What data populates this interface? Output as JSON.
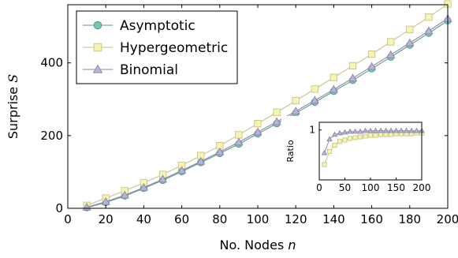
{
  "chart_data": {
    "type": "line",
    "xlabel": "No. Nodes",
    "xlabel_var": "n",
    "ylabel": "Surprise",
    "ylabel_var": "S",
    "xlim": [
      0,
      200
    ],
    "ylim": [
      0,
      560
    ],
    "xticks": [
      0,
      20,
      40,
      60,
      80,
      100,
      120,
      140,
      160,
      180,
      200
    ],
    "yticks": [
      0,
      200,
      400
    ],
    "grid": false,
    "legend": "top-left",
    "x": [
      10,
      20,
      30,
      40,
      50,
      60,
      70,
      80,
      90,
      100,
      110,
      120,
      130,
      140,
      150,
      160,
      170,
      180,
      190,
      200
    ],
    "series": [
      {
        "name": "Asymptotic",
        "marker": "circle",
        "line_color": "#5b9a8b",
        "fill": "#6fc6b4",
        "values": [
          2,
          16,
          34,
          55,
          77,
          101,
          126,
          151,
          177,
          205,
          233,
          262,
          292,
          322,
          352,
          384,
          416,
          449,
          482,
          516
        ]
      },
      {
        "name": "Hypergeometric",
        "marker": "square",
        "line_color": "#c8c48a",
        "fill": "#f7f4b0",
        "values": [
          8,
          28,
          48,
          70,
          93,
          118,
          145,
          172,
          202,
          233,
          264,
          296,
          328,
          360,
          392,
          424,
          458,
          492,
          526,
          562
        ]
      },
      {
        "name": "Binomial",
        "marker": "triangle",
        "line_color": "#8a86a8",
        "fill": "#b8b3d8",
        "values": [
          3,
          18,
          36,
          57,
          80,
          104,
          129,
          155,
          182,
          210,
          238,
          267,
          297,
          327,
          358,
          390,
          422,
          455,
          488,
          522
        ]
      }
    ],
    "inset": {
      "type": "line",
      "ylabel": "Ratio",
      "xlim": [
        0,
        200
      ],
      "ylim": [
        0.35,
        1.1
      ],
      "xticks": [
        0,
        50,
        100,
        150,
        200
      ],
      "yticks": [
        1
      ],
      "x": [
        10,
        20,
        30,
        40,
        50,
        60,
        70,
        80,
        90,
        100,
        110,
        120,
        130,
        140,
        150,
        160,
        170,
        180,
        190,
        200
      ],
      "series": [
        {
          "name": "Hypergeometric",
          "marker": "square",
          "values": [
            0.55,
            0.72,
            0.8,
            0.85,
            0.87,
            0.89,
            0.9,
            0.91,
            0.92,
            0.93,
            0.93,
            0.94,
            0.94,
            0.94,
            0.95,
            0.95,
            0.95,
            0.95,
            0.96,
            0.96
          ]
        },
        {
          "name": "Binomial",
          "marker": "triangle",
          "values": [
            0.7,
            0.88,
            0.94,
            0.96,
            0.97,
            0.98,
            0.98,
            0.98,
            0.99,
            0.99,
            0.99,
            0.99,
            0.99,
            0.99,
            0.99,
            0.99,
            0.99,
            0.99,
            0.99,
            0.99
          ]
        }
      ]
    }
  }
}
